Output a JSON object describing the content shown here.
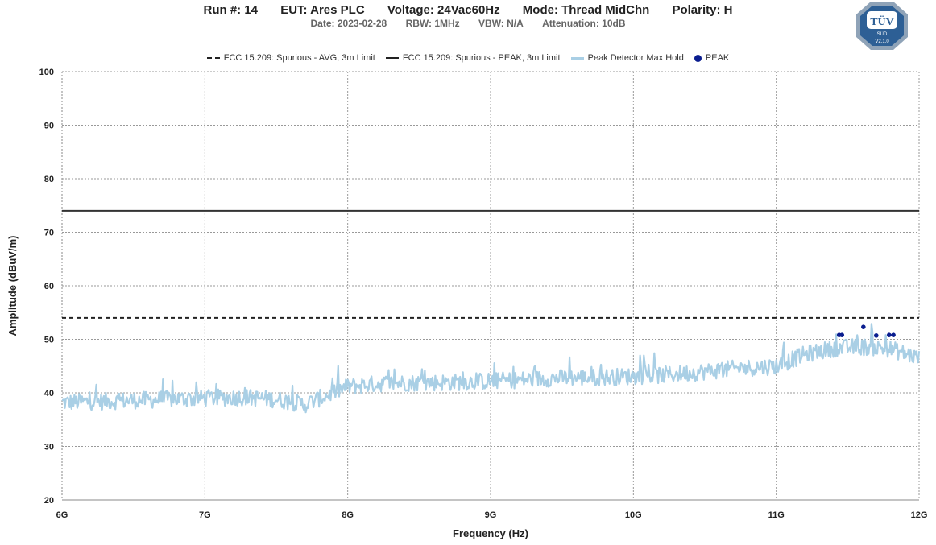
{
  "header": {
    "run": "Run #: 14",
    "eut": "EUT: Ares PLC",
    "voltage": "Voltage: 24Vac60Hz",
    "mode": "Mode: Thread MidChn",
    "polarity": "Polarity: H",
    "date": "Date: 2023-02-28",
    "rbw": "RBW: 1MHz",
    "vbw": "VBW: N/A",
    "attenuation": "Attenuation: 10dB"
  },
  "logo": {
    "main": "TÜV",
    "sub": "SÜD",
    "version": "V2.1.0"
  },
  "legend": {
    "avg_limit": "FCC 15.209: Spurious - AVG, 3m Limit",
    "peak_limit": "FCC 15.209: Spurious - PEAK, 3m Limit",
    "trace": "Peak Detector Max Hold",
    "peak": "PEAK"
  },
  "colors": {
    "avg_limit": "#222222",
    "peak_limit": "#333333",
    "trace": "#a9cfe5",
    "peak": "#0a1d8f",
    "grid": "#999999"
  },
  "chart_data": {
    "type": "line",
    "xlabel": "Frequency (Hz)",
    "ylabel": "Amplitude (dBuV/m)",
    "xlim": [
      6,
      12
    ],
    "ylim": [
      20,
      100
    ],
    "x_ticks": [
      6,
      7,
      8,
      9,
      10,
      11,
      12
    ],
    "x_tick_labels": [
      "6G",
      "7G",
      "8G",
      "9G",
      "10G",
      "11G",
      "12G"
    ],
    "y_ticks": [
      20,
      30,
      40,
      50,
      60,
      70,
      80,
      90,
      100
    ],
    "y_tick_labels": [
      "20",
      "30",
      "40",
      "50",
      "60",
      "70",
      "80",
      "90",
      "100"
    ],
    "grid": true,
    "legend_position": "top-center",
    "series": [
      {
        "name": "FCC 15.209: Spurious - AVG, 3m Limit",
        "style": "dashed",
        "x": [
          6,
          12
        ],
        "y": [
          54,
          54
        ]
      },
      {
        "name": "FCC 15.209: Spurious - PEAK, 3m Limit",
        "style": "solid",
        "x": [
          6,
          12
        ],
        "y": [
          74,
          74
        ]
      },
      {
        "name": "Peak Detector Max Hold",
        "style": "noise-band",
        "x": [
          6.0,
          6.25,
          6.5,
          6.75,
          7.0,
          7.25,
          7.5,
          7.7,
          7.85,
          8.0,
          8.25,
          8.5,
          8.75,
          9.0,
          9.25,
          9.5,
          9.75,
          10.0,
          10.25,
          10.5,
          10.75,
          11.0,
          11.2,
          11.4,
          11.6,
          11.8,
          12.0
        ],
        "y": [
          38.2,
          38.4,
          38.6,
          38.8,
          39.0,
          39.2,
          38.8,
          37.8,
          39.5,
          41.2,
          41.8,
          41.9,
          42.0,
          42.2,
          42.5,
          42.8,
          42.9,
          43.1,
          43.4,
          44.0,
          44.6,
          45.0,
          47.2,
          48.3,
          48.6,
          48.2,
          46.5
        ]
      },
      {
        "name": "PEAK",
        "style": "markers",
        "x": [
          11.44,
          11.46,
          11.61,
          11.7,
          11.79,
          11.82
        ],
        "y": [
          50.8,
          50.8,
          52.3,
          50.7,
          50.8,
          50.8
        ]
      }
    ]
  }
}
